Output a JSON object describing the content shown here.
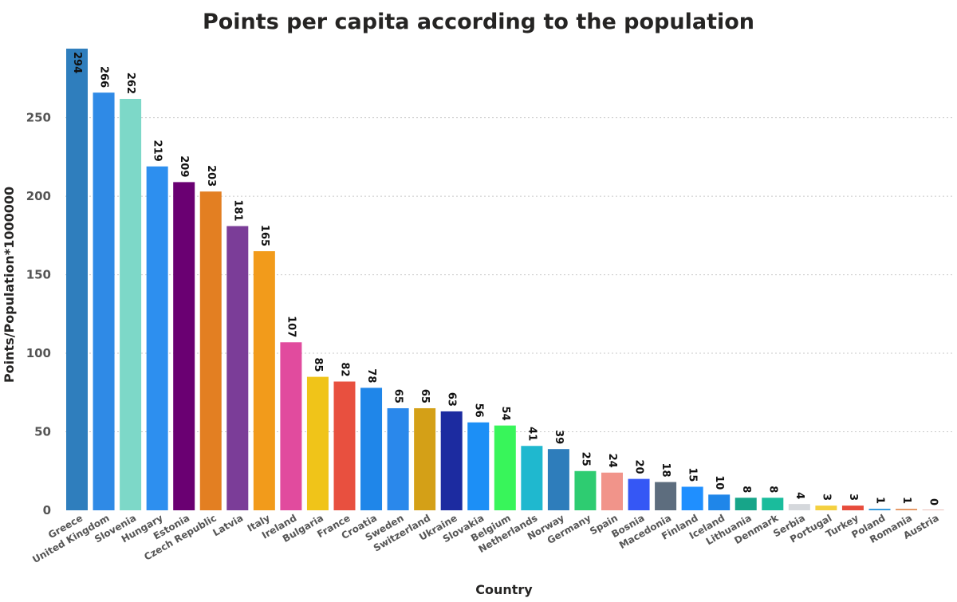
{
  "chart_data": {
    "type": "bar",
    "title": "Points per capita according to the population",
    "xlabel": "Country",
    "ylabel": "Points/Population*1000000",
    "ylim": [
      0,
      294
    ],
    "yticks": [
      0,
      50,
      100,
      150,
      200,
      250
    ],
    "grid": true,
    "categories": [
      "Greece",
      "United Kingdom",
      "Slovenia",
      "Hungary",
      "Estonia",
      "Czech Republic",
      "Latvia",
      "Italy",
      "Ireland",
      "Bulgaria",
      "France",
      "Croatia",
      "Sweden",
      "Switzerland",
      "Ukraine",
      "Slovakia",
      "Belgium",
      "Netherlands",
      "Norway",
      "Germany",
      "Spain",
      "Bosnia",
      "Macedonia",
      "Finland",
      "Iceland",
      "Lithuania",
      "Denmark",
      "Serbia",
      "Portugal",
      "Turkey",
      "Poland",
      "Romania",
      "Austria"
    ],
    "values": [
      294,
      266,
      262,
      219,
      209,
      203,
      181,
      165,
      107,
      85,
      82,
      78,
      65,
      65,
      63,
      56,
      54,
      41,
      39,
      25,
      24,
      20,
      18,
      15,
      10,
      8,
      8,
      4,
      3,
      3,
      1,
      1,
      0
    ],
    "colors": [
      "#2f7ebd",
      "#2f8ae6",
      "#7dd8c8",
      "#2d8fef",
      "#6a0072",
      "#e37f22",
      "#7b3d98",
      "#f29b1b",
      "#e14b9e",
      "#f0c419",
      "#e8503f",
      "#1f86e9",
      "#2a88eb",
      "#d4a017",
      "#1c2ba0",
      "#1c8ff6",
      "#38f55a",
      "#1fb8cf",
      "#2e7dbb",
      "#2ecc71",
      "#f1948a",
      "#3557f5",
      "#5d6d7e",
      "#1f8fff",
      "#1f86e9",
      "#17a589",
      "#1abc9c",
      "#d5d8dc",
      "#f4d03f",
      "#e74c3c",
      "#3498db",
      "#e59866",
      "#e6b0aa"
    ]
  }
}
